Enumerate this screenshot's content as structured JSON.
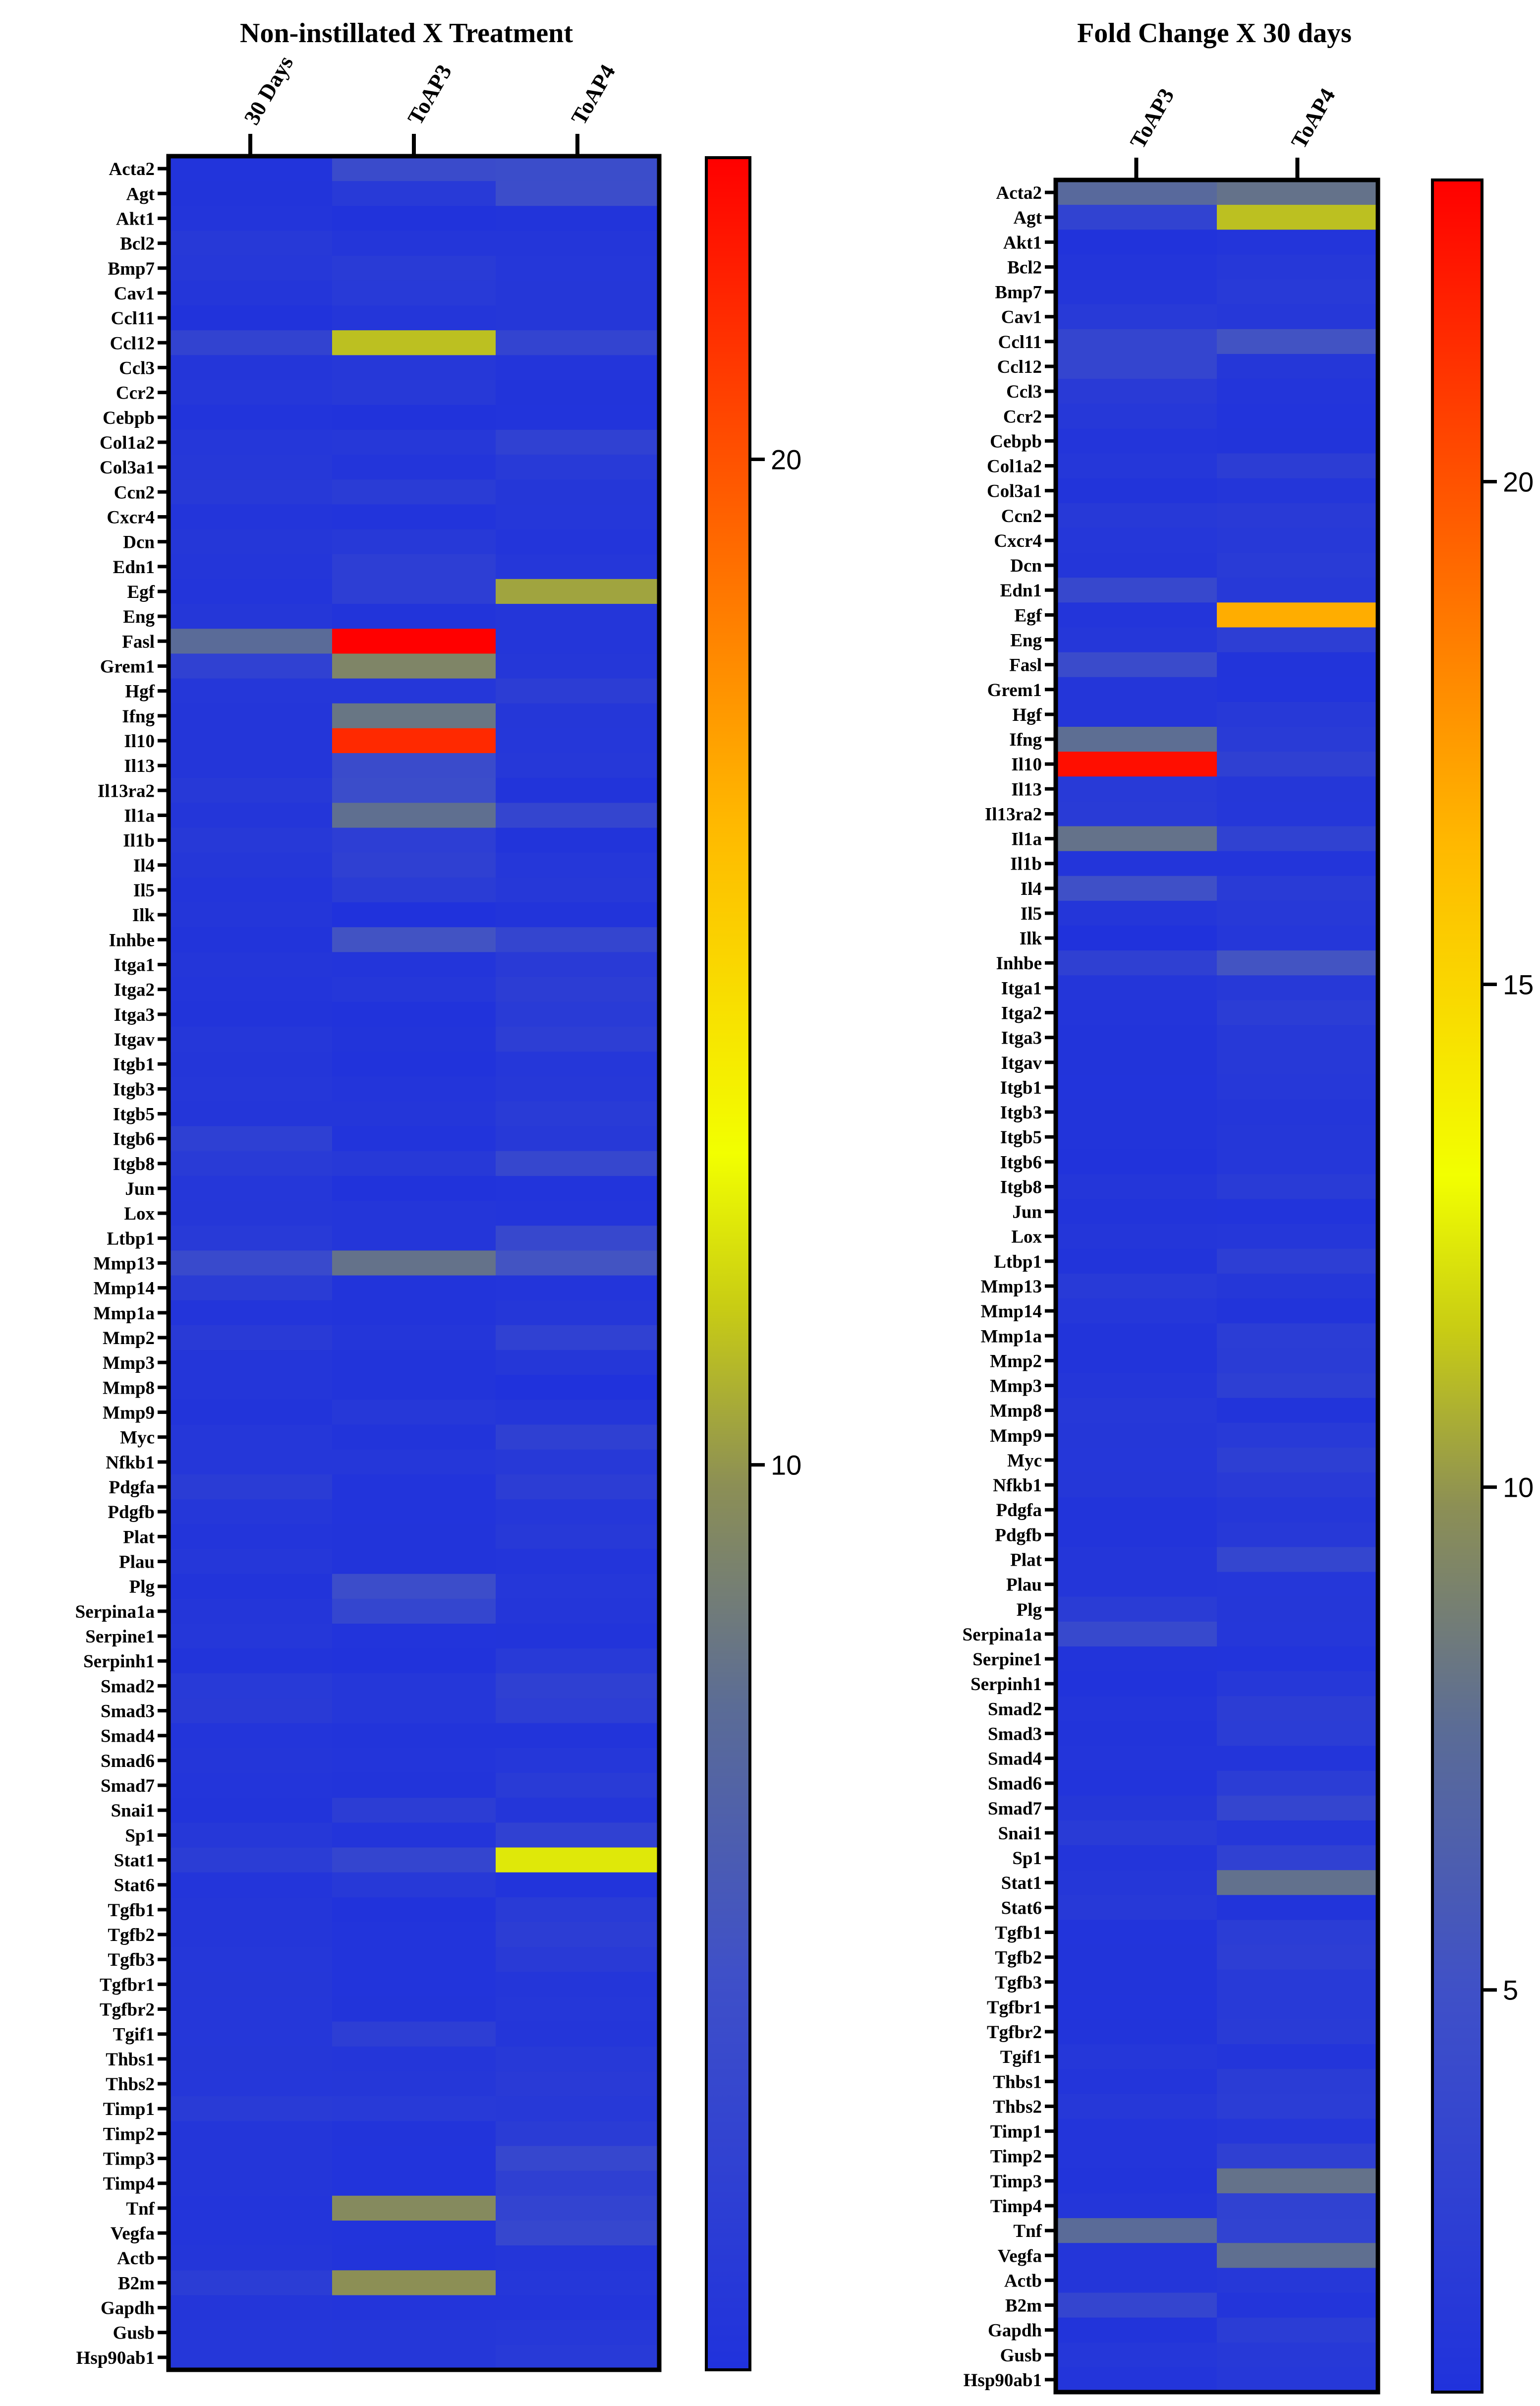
{
  "chart_data": [
    {
      "type": "heatmap",
      "title": "Non-instillated X Treatment",
      "columns": [
        "30 Days",
        "ToAP3",
        "ToAP4"
      ],
      "rows": [
        "Acta2",
        "Agt",
        "Akt1",
        "Bcl2",
        "Bmp7",
        "Cav1",
        "Ccl11",
        "Ccl12",
        "Ccl3",
        "Ccr2",
        "Cebpb",
        "Col1a2",
        "Col3a1",
        "Ccn2",
        "Cxcr4",
        "Dcn",
        "Edn1",
        "Egf",
        "Eng",
        "Fasl",
        "Grem1",
        "Hgf",
        "Ifng",
        "Il10",
        "Il13",
        "Il13ra2",
        "Il1a",
        "Il1b",
        "Il4",
        "Il5",
        "Ilk",
        "Inhbe",
        "Itga1",
        "Itga2",
        "Itga3",
        "Itgav",
        "Itgb1",
        "Itgb3",
        "Itgb5",
        "Itgb6",
        "Itgb8",
        "Jun",
        "Lox",
        "Ltbp1",
        "Mmp13",
        "Mmp14",
        "Mmp1a",
        "Mmp2",
        "Mmp3",
        "Mmp8",
        "Mmp9",
        "Myc",
        "Nfkb1",
        "Pdgfa",
        "Pdgfb",
        "Plat",
        "Plau",
        "Plg",
        "Serpina1a",
        "Serpine1",
        "Serpinh1",
        "Smad2",
        "Smad3",
        "Smad4",
        "Smad6",
        "Smad7",
        "Snai1",
        "Sp1",
        "Stat1",
        "Stat6",
        "Tgfb1",
        "Tgfb2",
        "Tgfb3",
        "Tgfbr1",
        "Tgfbr2",
        "Tgif1",
        "Thbs1",
        "Thbs2",
        "Timp1",
        "Timp2",
        "Timp3",
        "Timp4",
        "Tnf",
        "Vegfa",
        "Actb",
        "B2m",
        "Gapdh",
        "Gusb",
        "Hsp90ab1"
      ],
      "values": [
        [
          1.2,
          4.3,
          4.5
        ],
        [
          1.3,
          2.0,
          4.6
        ],
        [
          1.4,
          1.1,
          1.3
        ],
        [
          1.9,
          1.5,
          1.5
        ],
        [
          1.8,
          2.2,
          1.6
        ],
        [
          1.5,
          2.0,
          1.7
        ],
        [
          1.1,
          1.5,
          1.7
        ],
        [
          3.3,
          11.2,
          3.4
        ],
        [
          1.5,
          1.8,
          1.4
        ],
        [
          1.6,
          1.9,
          1.3
        ],
        [
          1.2,
          1.1,
          1.2
        ],
        [
          1.6,
          1.8,
          3.0
        ],
        [
          1.8,
          1.4,
          2.0
        ],
        [
          1.9,
          2.3,
          1.7
        ],
        [
          1.4,
          1.2,
          1.6
        ],
        [
          1.7,
          1.9,
          1.4
        ],
        [
          1.5,
          2.6,
          1.6
        ],
        [
          1.4,
          2.6,
          10.4
        ],
        [
          1.7,
          1.3,
          1.5
        ],
        [
          7.5,
          23.0,
          1.5
        ],
        [
          3.0,
          9.2,
          1.7
        ],
        [
          1.6,
          1.6,
          2.5
        ],
        [
          1.5,
          8.2,
          1.7
        ],
        [
          1.5,
          21.5,
          1.6
        ],
        [
          1.5,
          4.3,
          1.8
        ],
        [
          1.9,
          4.5,
          1.3
        ],
        [
          1.5,
          7.8,
          3.5
        ],
        [
          1.9,
          2.6,
          1.3
        ],
        [
          1.7,
          2.9,
          1.6
        ],
        [
          1.4,
          2.3,
          1.8
        ],
        [
          1.5,
          1.0,
          1.3
        ],
        [
          1.3,
          5.2,
          3.5
        ],
        [
          1.5,
          1.4,
          2.1
        ],
        [
          1.4,
          1.6,
          2.5
        ],
        [
          1.3,
          1.1,
          2.2
        ],
        [
          1.6,
          1.3,
          2.6
        ],
        [
          1.5,
          1.1,
          1.6
        ],
        [
          1.6,
          1.4,
          1.8
        ],
        [
          1.5,
          1.5,
          2.2
        ],
        [
          2.8,
          1.2,
          1.9
        ],
        [
          2.2,
          1.9,
          3.8
        ],
        [
          1.6,
          1.1,
          1.2
        ],
        [
          1.7,
          1.5,
          1.4
        ],
        [
          2.0,
          1.5,
          3.9
        ],
        [
          4.2,
          8.0,
          5.3
        ],
        [
          2.3,
          1.3,
          1.4
        ],
        [
          1.4,
          1.3,
          1.7
        ],
        [
          2.1,
          1.5,
          3.0
        ],
        [
          1.5,
          1.3,
          1.7
        ],
        [
          1.5,
          1.3,
          1.0
        ],
        [
          1.3,
          1.8,
          1.5
        ],
        [
          1.6,
          1.3,
          2.9
        ],
        [
          1.6,
          1.6,
          1.9
        ],
        [
          2.3,
          1.2,
          2.5
        ],
        [
          1.6,
          1.2,
          1.6
        ],
        [
          1.4,
          1.3,
          1.9
        ],
        [
          1.6,
          1.3,
          1.4
        ],
        [
          1.3,
          4.6,
          1.6
        ],
        [
          1.5,
          3.6,
          1.5
        ],
        [
          1.6,
          1.2,
          1.3
        ],
        [
          1.3,
          1.1,
          2.0
        ],
        [
          2.0,
          1.6,
          2.9
        ],
        [
          2.1,
          1.6,
          2.6
        ],
        [
          1.4,
          1.3,
          1.3
        ],
        [
          1.5,
          1.4,
          1.6
        ],
        [
          1.4,
          1.3,
          2.2
        ],
        [
          1.3,
          2.5,
          1.5
        ],
        [
          1.8,
          1.4,
          3.0
        ],
        [
          2.4,
          3.5,
          12.4
        ],
        [
          1.4,
          1.9,
          1.2
        ],
        [
          1.5,
          1.1,
          2.2
        ],
        [
          1.5,
          1.2,
          2.5
        ],
        [
          1.6,
          1.2,
          2.1
        ],
        [
          1.7,
          1.2,
          1.5
        ],
        [
          1.6,
          1.3,
          1.6
        ],
        [
          1.6,
          2.6,
          1.5
        ],
        [
          1.7,
          1.5,
          1.9
        ],
        [
          1.6,
          1.7,
          2.1
        ],
        [
          2.2,
          2.0,
          1.9
        ],
        [
          1.5,
          1.3,
          2.3
        ],
        [
          1.5,
          1.2,
          3.8
        ],
        [
          1.5,
          1.2,
          2.9
        ],
        [
          1.4,
          9.5,
          3.4
        ],
        [
          1.4,
          1.2,
          3.8
        ],
        [
          1.5,
          1.3,
          1.5
        ],
        [
          2.4,
          9.8,
          1.6
        ],
        [
          1.5,
          1.4,
          1.4
        ],
        [
          1.6,
          1.7,
          1.8
        ],
        [
          1.6,
          1.7,
          2.0
        ]
      ],
      "colorbar": {
        "ticks": [
          10,
          20
        ],
        "range": [
          1,
          23
        ]
      }
    },
    {
      "type": "heatmap",
      "title": "Fold Change X 30 days",
      "columns": [
        "ToAP3",
        "ToAP4"
      ],
      "rows": [
        "Acta2",
        "Agt",
        "Akt1",
        "Bcl2",
        "Bmp7",
        "Cav1",
        "Ccl11",
        "Ccl12",
        "Ccl3",
        "Ccr2",
        "Cebpb",
        "Col1a2",
        "Col3a1",
        "Ccn2",
        "Cxcr4",
        "Dcn",
        "Edn1",
        "Egf",
        "Eng",
        "Fasl",
        "Grem1",
        "Hgf",
        "Ifng",
        "Il10",
        "Il13",
        "Il13ra2",
        "Il1a",
        "Il1b",
        "Il4",
        "Il5",
        "Ilk",
        "Inhbe",
        "Itga1",
        "Itga2",
        "Itga3",
        "Itgav",
        "Itgb1",
        "Itgb3",
        "Itgb5",
        "Itgb6",
        "Itgb8",
        "Jun",
        "Lox",
        "Ltbp1",
        "Mmp13",
        "Mmp14",
        "Mmp1a",
        "Mmp2",
        "Mmp3",
        "Mmp8",
        "Mmp9",
        "Myc",
        "Nfkb1",
        "Pdgfa",
        "Pdgfb",
        "Plat",
        "Plau",
        "Plg",
        "Serpina1a",
        "Serpine1",
        "Serpinh1",
        "Smad2",
        "Smad3",
        "Smad4",
        "Smad6",
        "Smad7",
        "Snai1",
        "Sp1",
        "Stat1",
        "Stat6",
        "Tgfb1",
        "Tgfb2",
        "Tgfb3",
        "Tgfbr1",
        "Tgfbr2",
        "Tgif1",
        "Thbs1",
        "Thbs2",
        "Timp1",
        "Timp2",
        "Timp3",
        "Timp4",
        "Tnf",
        "Vegfa",
        "Actb",
        "B2m",
        "Gapdh",
        "Gusb",
        "Hsp90ab1"
      ],
      "values": [
        [
          7.3,
          8.0
        ],
        [
          3.2,
          11.2
        ],
        [
          1.1,
          1.4
        ],
        [
          1.4,
          1.8
        ],
        [
          1.5,
          2.0
        ],
        [
          2.0,
          1.8
        ],
        [
          3.5,
          5.2
        ],
        [
          3.5,
          1.7
        ],
        [
          2.1,
          1.4
        ],
        [
          1.8,
          1.2
        ],
        [
          1.4,
          1.3
        ],
        [
          1.6,
          2.5
        ],
        [
          1.3,
          1.5
        ],
        [
          1.9,
          2.1
        ],
        [
          1.6,
          1.9
        ],
        [
          1.5,
          2.2
        ],
        [
          3.9,
          1.9
        ],
        [
          1.4,
          16.8
        ],
        [
          1.6,
          2.6
        ],
        [
          4.3,
          1.3
        ],
        [
          1.5,
          1.2
        ],
        [
          1.5,
          1.9
        ],
        [
          7.7,
          2.2
        ],
        [
          22.5,
          2.9
        ],
        [
          2.0,
          1.7
        ],
        [
          2.2,
          1.6
        ],
        [
          8.0,
          3.1
        ],
        [
          1.4,
          1.4
        ],
        [
          5.0,
          2.2
        ],
        [
          1.5,
          1.9
        ],
        [
          1.0,
          1.6
        ],
        [
          2.9,
          5.3
        ],
        [
          1.5,
          1.9
        ],
        [
          1.4,
          2.4
        ],
        [
          1.3,
          1.9
        ],
        [
          1.3,
          1.9
        ],
        [
          1.2,
          1.8
        ],
        [
          1.3,
          1.5
        ],
        [
          1.3,
          1.7
        ],
        [
          1.1,
          1.6
        ],
        [
          1.5,
          2.2
        ],
        [
          1.3,
          1.2
        ],
        [
          1.5,
          1.6
        ],
        [
          1.3,
          2.6
        ],
        [
          2.0,
          1.7
        ],
        [
          1.6,
          1.3
        ],
        [
          1.3,
          2.4
        ],
        [
          1.3,
          2.3
        ],
        [
          1.5,
          2.7
        ],
        [
          1.8,
          1.3
        ],
        [
          1.7,
          2.0
        ],
        [
          1.6,
          2.7
        ],
        [
          1.7,
          2.1
        ],
        [
          1.3,
          1.7
        ],
        [
          1.3,
          1.9
        ],
        [
          1.5,
          3.6
        ],
        [
          1.5,
          1.6
        ],
        [
          2.3,
          1.7
        ],
        [
          4.0,
          1.6
        ],
        [
          1.3,
          1.2
        ],
        [
          1.1,
          1.8
        ],
        [
          1.4,
          2.5
        ],
        [
          1.3,
          2.4
        ],
        [
          1.4,
          1.4
        ],
        [
          1.2,
          2.4
        ],
        [
          1.7,
          3.5
        ],
        [
          2.2,
          1.6
        ],
        [
          1.4,
          3.0
        ],
        [
          1.7,
          7.9
        ],
        [
          1.9,
          1.3
        ],
        [
          1.2,
          2.4
        ],
        [
          1.3,
          2.6
        ],
        [
          1.3,
          2.0
        ],
        [
          1.2,
          2.0
        ],
        [
          1.3,
          2.2
        ],
        [
          1.6,
          1.4
        ],
        [
          1.4,
          2.3
        ],
        [
          1.8,
          2.4
        ],
        [
          1.4,
          1.6
        ],
        [
          1.4,
          2.9
        ],
        [
          1.3,
          8.0
        ],
        [
          1.5,
          3.1
        ],
        [
          7.5,
          3.2
        ],
        [
          1.5,
          7.8
        ],
        [
          1.5,
          1.8
        ],
        [
          3.5,
          1.4
        ],
        [
          1.3,
          2.4
        ],
        [
          1.6,
          1.9
        ],
        [
          1.4,
          1.8
        ]
      ],
      "colorbar": {
        "ticks": [
          5,
          10,
          15,
          20
        ],
        "range": [
          1,
          23
        ]
      }
    }
  ]
}
